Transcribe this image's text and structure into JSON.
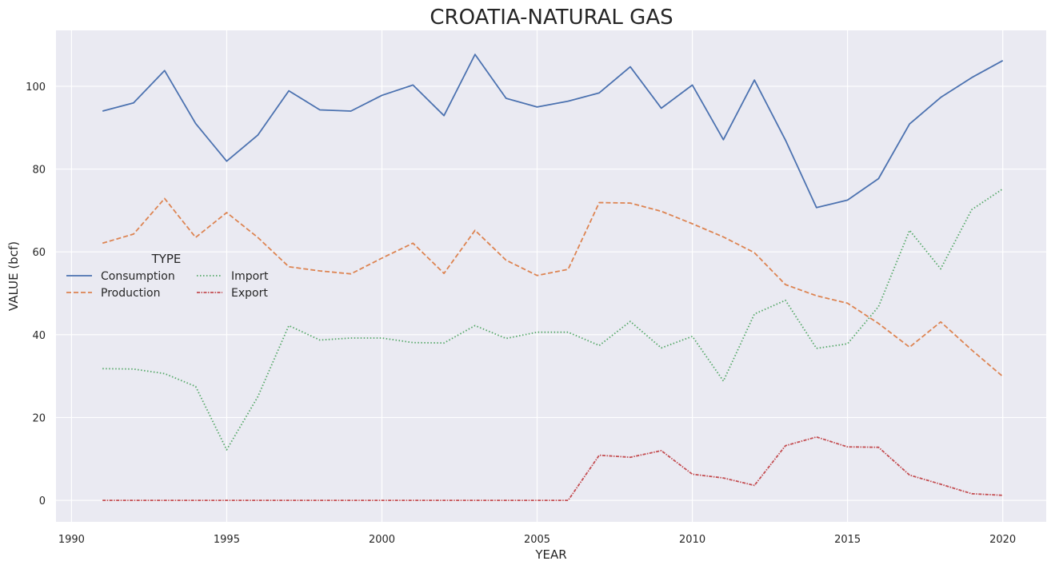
{
  "chart_data": {
    "type": "line",
    "title": "CROATIA-NATURAL GAS",
    "xlabel": "YEAR",
    "ylabel": "VALUE (bcf)",
    "xlim": [
      1989.5,
      2021.4
    ],
    "ylim": [
      -5.2,
      113.5
    ],
    "xticks": [
      1990,
      1995,
      2000,
      2005,
      2010,
      2015,
      2020
    ],
    "yticks": [
      0,
      20,
      40,
      60,
      80,
      100
    ],
    "grid": true,
    "legend": {
      "title": "TYPE",
      "placement": "center-left",
      "columns": 2
    },
    "x": [
      1991,
      1992,
      1993,
      1994,
      1995,
      1996,
      1997,
      1998,
      1999,
      2000,
      2001,
      2002,
      2003,
      2004,
      2005,
      2006,
      2007,
      2008,
      2009,
      2010,
      2011,
      2012,
      2013,
      2014,
      2015,
      2016,
      2017,
      2018,
      2019,
      2020
    ],
    "series": [
      {
        "name": "Consumption",
        "color": "#4c72b0",
        "dash": "solid",
        "values": [
          94.0,
          96.0,
          103.8,
          91.0,
          81.9,
          88.2,
          98.9,
          94.3,
          94.0,
          97.8,
          100.3,
          92.9,
          107.7,
          97.1,
          95.0,
          96.4,
          98.4,
          104.7,
          94.7,
          100.3,
          87.1,
          101.5,
          87.0,
          70.7,
          72.5,
          77.7,
          90.9,
          97.3,
          102.1,
          106.2
        ]
      },
      {
        "name": "Production",
        "color": "#dd8452",
        "dash": "dashed",
        "values": [
          62.1,
          64.3,
          72.9,
          63.5,
          69.5,
          63.5,
          56.4,
          55.4,
          54.7,
          58.5,
          62.1,
          54.8,
          65.2,
          58.0,
          54.3,
          55.8,
          71.9,
          71.8,
          69.8,
          66.8,
          63.6,
          59.8,
          52.1,
          49.4,
          47.6,
          42.7,
          37.0,
          43.1,
          36.3,
          29.9
        ]
      },
      {
        "name": "Import",
        "color": "#55a868",
        "dash": "dotted",
        "values": [
          31.8,
          31.7,
          30.6,
          27.5,
          12.2,
          25.0,
          42.2,
          38.7,
          39.2,
          39.2,
          38.1,
          38.0,
          42.2,
          39.1,
          40.6,
          40.6,
          37.4,
          43.2,
          36.8,
          39.6,
          28.8,
          45.0,
          48.3,
          36.7,
          37.8,
          46.8,
          65.2,
          55.9,
          70.2,
          75.2
        ]
      },
      {
        "name": "Export",
        "color": "#c44e52",
        "dash": "dashdot",
        "values": [
          0,
          0,
          0,
          0,
          0,
          0,
          0,
          0,
          0,
          0,
          0,
          0,
          0,
          0,
          0,
          0,
          10.9,
          10.4,
          12.0,
          6.3,
          5.4,
          3.6,
          13.2,
          15.3,
          12.9,
          12.8,
          6.1,
          3.9,
          1.6,
          1.2
        ]
      }
    ]
  }
}
